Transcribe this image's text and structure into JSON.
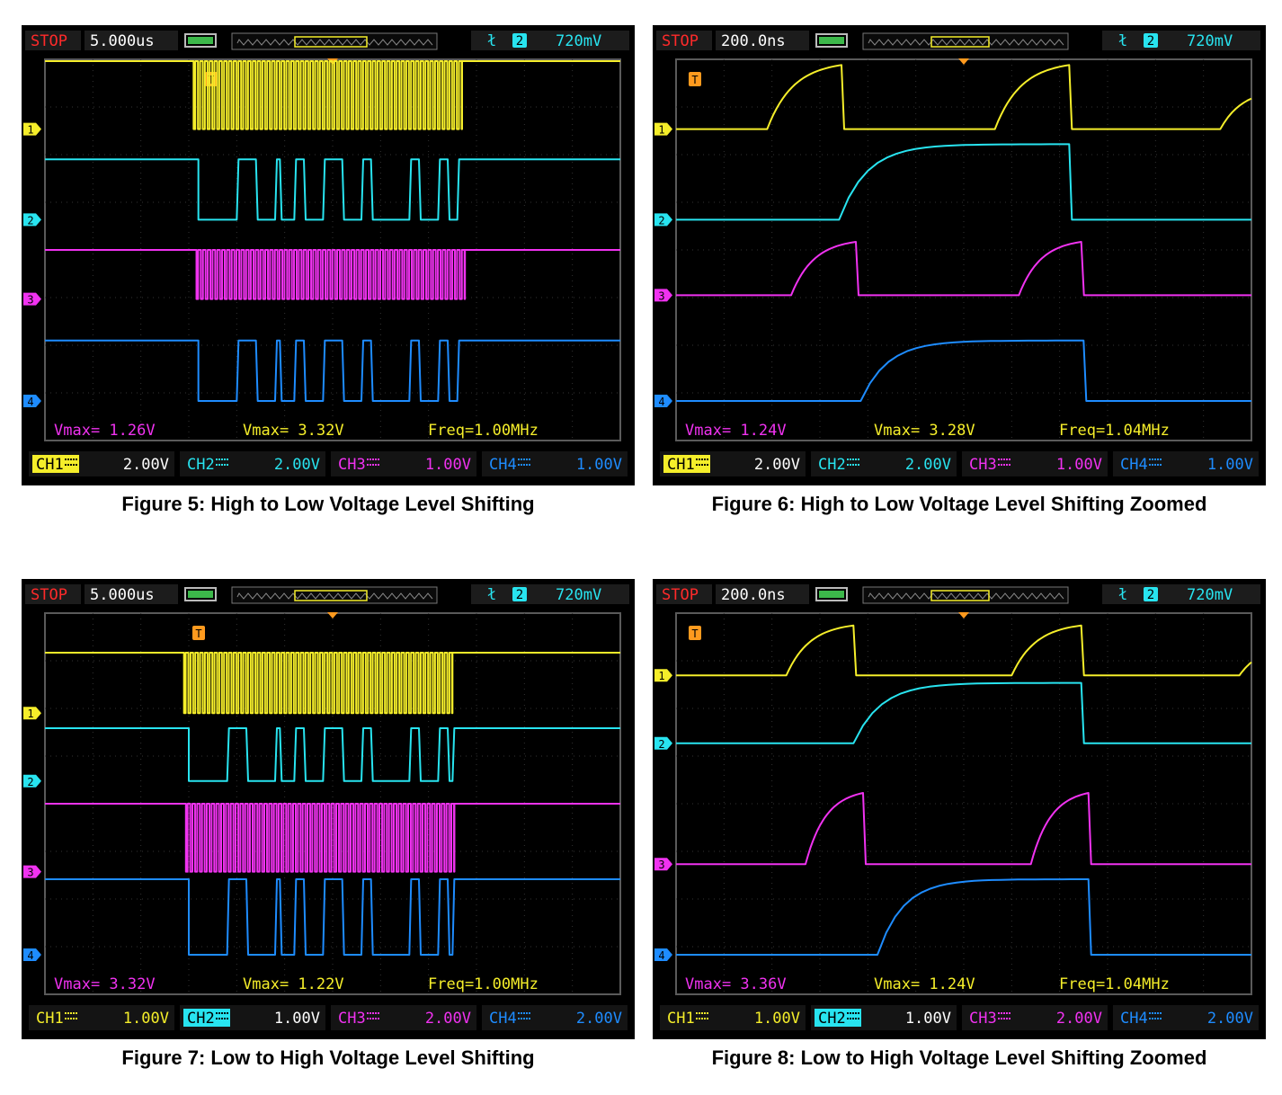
{
  "colors": {
    "ch1": "#f5ee2a",
    "ch2": "#28e4f0",
    "ch3": "#f032f0",
    "ch4": "#1e8cff",
    "trigger": "#ff9a1e",
    "stop": "#ff2a2a",
    "bg": "#000000",
    "frame": "#1a1a1a"
  },
  "figures": [
    {
      "caption": "Figure 5: High to Low Voltage Level Shifting",
      "status": "STOP",
      "timebase": "5.000us",
      "trigger_source": "2",
      "trigger_level": "720mV",
      "trigger_symbol": "ł",
      "meas": [
        "Vmax= 1.26V",
        "Vmax= 3.32V",
        "Freq=1.00MHz"
      ],
      "channels": [
        {
          "label": "CH1",
          "scale": "2.00V",
          "selected": true
        },
        {
          "label": "CH2",
          "scale": "2.00V",
          "selected": false
        },
        {
          "label": "CH3",
          "scale": "1.00V",
          "selected": false
        },
        {
          "label": "CH4",
          "scale": "1.00V",
          "selected": false
        }
      ],
      "marker_labels": [
        "1",
        "2",
        "3",
        "4"
      ],
      "trigger_marker": "T",
      "chart_data": {
        "type": "line",
        "x_unit": "us",
        "x_per_div": 5.0,
        "x_range": [
          -30,
          30
        ],
        "series": [
          {
            "name": "CH1",
            "kind": "clock",
            "high_div": 4.5,
            "low_div": 3.6,
            "start": -14.5,
            "end": 13.5,
            "period": 0.5,
            "edge_high_before": true,
            "edge_high_after": true
          },
          {
            "name": "CH2",
            "kind": "data",
            "high_div": 3.2,
            "low_div": 2.4,
            "idle_high": true,
            "pulses": [
              [
                -14,
                -11
              ],
              [
                -10,
                -8
              ],
              [
                -6,
                -5.5
              ],
              [
                -4,
                -3
              ],
              [
                -1,
                1
              ],
              [
                3,
                4
              ],
              [
                8,
                9
              ],
              [
                11,
                12
              ],
              [
                13,
                15
              ]
            ]
          },
          {
            "name": "CH3",
            "kind": "clock",
            "high_div": 2.0,
            "low_div": 1.35,
            "start": -14.2,
            "end": 13.8,
            "period": 0.5,
            "edge_high_before": true,
            "edge_high_after": true
          },
          {
            "name": "CH4",
            "kind": "data",
            "high_div": 0.8,
            "low_div": 0.0,
            "idle_high": true,
            "pulses": [
              [
                -14,
                -11
              ],
              [
                -10,
                -8
              ],
              [
                -6,
                -5.5
              ],
              [
                -4,
                -3
              ],
              [
                -1,
                1
              ],
              [
                3,
                4
              ],
              [
                8,
                9
              ],
              [
                11,
                12
              ],
              [
                13,
                15
              ]
            ]
          }
        ]
      }
    },
    {
      "caption": "Figure 6: High to Low Voltage Level Shifting Zoomed",
      "status": "STOP",
      "timebase": "200.0ns",
      "trigger_source": "2",
      "trigger_level": "720mV",
      "trigger_symbol": "ł",
      "meas": [
        "Vmax= 1.24V",
        "Vmax= 3.28V",
        "Freq=1.04MHz"
      ],
      "channels": [
        {
          "label": "CH1",
          "scale": "2.00V",
          "selected": true
        },
        {
          "label": "CH2",
          "scale": "2.00V",
          "selected": false
        },
        {
          "label": "CH3",
          "scale": "1.00V",
          "selected": false
        },
        {
          "label": "CH4",
          "scale": "1.00V",
          "selected": false
        }
      ],
      "marker_labels": [
        "1",
        "2",
        "3",
        "4"
      ],
      "trigger_marker": "T",
      "chart_data": {
        "type": "line",
        "x_unit": "ns",
        "x_per_div": 200.0,
        "x_range": [
          -1200,
          1200
        ],
        "series": [
          {
            "name": "CH1",
            "kind": "rc",
            "base_div": 3.6,
            "amp_div": 0.9,
            "pulses": [
              [
                -820,
                -510
              ],
              [
                130,
                440
              ]
            ],
            "tail_start": 1070
          },
          {
            "name": "CH2",
            "kind": "rc_long",
            "base_div": 2.4,
            "amp_div": 1.0,
            "pulses": [
              [
                -520,
                440
              ]
            ]
          },
          {
            "name": "CH3",
            "kind": "rc",
            "base_div": 1.4,
            "amp_div": 0.75,
            "pulses": [
              [
                -720,
                -450
              ],
              [
                230,
                490
              ]
            ]
          },
          {
            "name": "CH4",
            "kind": "rc_long",
            "base_div": 0.0,
            "amp_div": 0.8,
            "pulses": [
              [
                -430,
                500
              ]
            ]
          }
        ]
      }
    },
    {
      "caption": "Figure 7: Low to High Voltage Level Shifting",
      "status": "STOP",
      "timebase": "5.000us",
      "trigger_source": "2",
      "trigger_level": "720mV",
      "trigger_symbol": "ł",
      "meas": [
        "Vmax= 3.32V",
        "Vmax= 1.22V",
        "Freq=1.00MHz"
      ],
      "channels": [
        {
          "label": "CH1",
          "scale": "1.00V",
          "selected": false
        },
        {
          "label": "CH2",
          "scale": "1.00V",
          "selected": true
        },
        {
          "label": "CH3",
          "scale": "2.00V",
          "selected": false
        },
        {
          "label": "CH4",
          "scale": "2.00V",
          "selected": false
        }
      ],
      "marker_labels": [
        "1",
        "2",
        "3",
        "4"
      ],
      "trigger_marker": "T",
      "chart_data": {
        "type": "line",
        "x_unit": "us",
        "x_per_div": 5.0,
        "x_range": [
          -30,
          30
        ],
        "series": [
          {
            "name": "CH1",
            "kind": "clock",
            "high_div": 4.0,
            "low_div": 3.2,
            "start": -15.5,
            "end": 12.5,
            "period": 0.5,
            "edge_high_before": true,
            "edge_high_after": true
          },
          {
            "name": "CH2",
            "kind": "data",
            "high_div": 3.0,
            "low_div": 2.3,
            "idle_high": true,
            "pulses": [
              [
                -15,
                -12
              ],
              [
                -11,
                -9
              ],
              [
                -6,
                -5.5
              ],
              [
                -4,
                -3
              ],
              [
                -1,
                1
              ],
              [
                3,
                4
              ],
              [
                8,
                9
              ],
              [
                11,
                12
              ],
              [
                12.5,
                15
              ]
            ]
          },
          {
            "name": "CH3",
            "kind": "clock",
            "high_div": 2.0,
            "low_div": 1.1,
            "start": -15.3,
            "end": 12.7,
            "period": 0.5,
            "edge_high_before": true,
            "edge_high_after": true
          },
          {
            "name": "CH4",
            "kind": "data",
            "high_div": 1.0,
            "low_div": 0.0,
            "idle_high": true,
            "pulses": [
              [
                -15,
                -12
              ],
              [
                -11,
                -9
              ],
              [
                -6,
                -5.5
              ],
              [
                -4,
                -3
              ],
              [
                -1,
                1
              ],
              [
                3,
                4
              ],
              [
                8,
                9
              ],
              [
                11,
                12
              ],
              [
                12.5,
                15
              ]
            ]
          }
        ]
      }
    },
    {
      "caption": "Figure 8: Low to High Voltage Level Shifting Zoomed",
      "status": "STOP",
      "timebase": "200.0ns",
      "trigger_source": "2",
      "trigger_level": "720mV",
      "trigger_symbol": "ł",
      "meas": [
        "Vmax= 3.36V",
        "Vmax= 1.24V",
        "Freq=1.04MHz"
      ],
      "channels": [
        {
          "label": "CH1",
          "scale": "1.00V",
          "selected": false
        },
        {
          "label": "CH2",
          "scale": "1.00V",
          "selected": true
        },
        {
          "label": "CH3",
          "scale": "2.00V",
          "selected": false
        },
        {
          "label": "CH4",
          "scale": "2.00V",
          "selected": false
        }
      ],
      "marker_labels": [
        "1",
        "2",
        "3",
        "4"
      ],
      "trigger_marker": "T",
      "chart_data": {
        "type": "line",
        "x_unit": "ns",
        "x_per_div": 200.0,
        "x_range": [
          -1200,
          1200
        ],
        "series": [
          {
            "name": "CH1",
            "kind": "rc",
            "base_div": 3.7,
            "amp_div": 0.7,
            "pulses": [
              [
                -740,
                -460
              ],
              [
                200,
                490
              ]
            ],
            "tail_start": 1150
          },
          {
            "name": "CH2",
            "kind": "rc_long",
            "base_div": 2.8,
            "amp_div": 0.8,
            "pulses": [
              [
                -460,
                490
              ]
            ]
          },
          {
            "name": "CH3",
            "kind": "rc",
            "base_div": 1.2,
            "amp_div": 1.0,
            "pulses": [
              [
                -660,
                -420
              ],
              [
                280,
                520
              ]
            ]
          },
          {
            "name": "CH4",
            "kind": "rc_long",
            "base_div": 0.0,
            "amp_div": 1.0,
            "pulses": [
              [
                -360,
                520
              ]
            ]
          }
        ]
      }
    }
  ]
}
